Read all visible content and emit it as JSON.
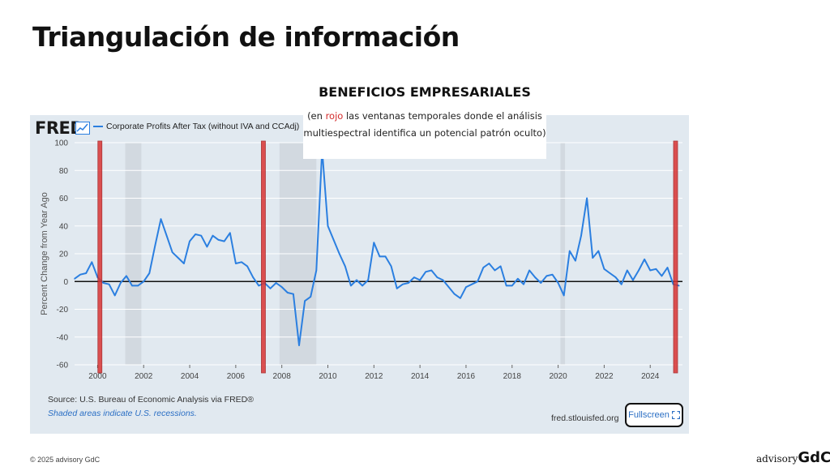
{
  "slide": {
    "title": "Triangulación de información",
    "copyright": "© 2025 advisory GdC",
    "brand_small": "advisory",
    "brand_big": "GdC"
  },
  "annotation": {
    "title": "BENEFICIOS EMPRESARIALES",
    "prefix": "(en ",
    "red_word": "rojo",
    "rest": " las ventanas temporales donde el análisis multiespectral identifica un potencial patrón oculto)"
  },
  "fred": {
    "logo": "FRED",
    "series_label": "Corporate Profits After Tax (without IVA and CCAdj)",
    "source": "Source: U.S. Bureau of Economic Analysis via FRED®",
    "shaded_note": "Shaded areas indicate U.S. recessions.",
    "url": "fred.stlouisfed.org",
    "fullscreen_label": "Fullscreen"
  },
  "colors": {
    "series": "#2b7fe0",
    "highlight": "#d93434",
    "recession": "#d2d9e0",
    "panel": "#e1e9f0"
  },
  "chart_data": {
    "type": "line",
    "title": "Corporate Profits After Tax (without IVA and CCAdj)",
    "xlabel": "",
    "ylabel": "Percent Change from Year Ago",
    "xlim": [
      1999.0,
      2025.4
    ],
    "ylim": [
      -60,
      100
    ],
    "yticks": [
      100,
      80,
      60,
      40,
      20,
      0,
      -20,
      -40,
      -60
    ],
    "xticks": [
      2000,
      2002,
      2004,
      2006,
      2008,
      2010,
      2012,
      2014,
      2016,
      2018,
      2020,
      2022,
      2024
    ],
    "recessions": [
      [
        2001.2,
        2001.9
      ],
      [
        2007.9,
        2009.5
      ],
      [
        2020.1,
        2020.3
      ]
    ],
    "highlight_windows": [
      2000.1,
      2007.2,
      2025.1
    ],
    "series": [
      {
        "name": "Corporate Profits After Tax (without IVA and CCAdj)",
        "x": [
          1999.0,
          1999.25,
          1999.5,
          1999.75,
          2000.0,
          2000.25,
          2000.5,
          2000.75,
          2001.0,
          2001.25,
          2001.5,
          2001.75,
          2002.0,
          2002.25,
          2002.5,
          2002.75,
          2003.0,
          2003.25,
          2003.5,
          2003.75,
          2004.0,
          2004.25,
          2004.5,
          2004.75,
          2005.0,
          2005.25,
          2005.5,
          2005.75,
          2006.0,
          2006.25,
          2006.5,
          2006.75,
          2007.0,
          2007.25,
          2007.5,
          2007.75,
          2008.0,
          2008.25,
          2008.5,
          2008.75,
          2009.0,
          2009.25,
          2009.5,
          2009.75,
          2010.0,
          2010.25,
          2010.5,
          2010.75,
          2011.0,
          2011.25,
          2011.5,
          2011.75,
          2012.0,
          2012.25,
          2012.5,
          2012.75,
          2013.0,
          2013.25,
          2013.5,
          2013.75,
          2014.0,
          2014.25,
          2014.5,
          2014.75,
          2015.0,
          2015.25,
          2015.5,
          2015.75,
          2016.0,
          2016.25,
          2016.5,
          2016.75,
          2017.0,
          2017.25,
          2017.5,
          2017.75,
          2018.0,
          2018.25,
          2018.5,
          2018.75,
          2019.0,
          2019.25,
          2019.5,
          2019.75,
          2020.0,
          2020.25,
          2020.5,
          2020.75,
          2021.0,
          2021.25,
          2021.5,
          2021.75,
          2022.0,
          2022.25,
          2022.5,
          2022.75,
          2023.0,
          2023.25,
          2023.5,
          2023.75,
          2024.0,
          2024.25,
          2024.5,
          2024.75,
          2025.0,
          2025.25
        ],
        "values": [
          2,
          5,
          6,
          14,
          3,
          -1,
          -2,
          -10,
          -1,
          4,
          -3,
          -3,
          0,
          6,
          26,
          45,
          33,
          21,
          17,
          13,
          29,
          34,
          33,
          25,
          33,
          30,
          29,
          35,
          13,
          14,
          11,
          3,
          -3,
          -1,
          -5,
          -1,
          -4,
          -8,
          -9,
          -46,
          -14,
          -11,
          8,
          95,
          40,
          30,
          20,
          11,
          -3,
          1,
          -3,
          1,
          28,
          18,
          18,
          11,
          -5,
          -2,
          -1,
          3,
          1,
          7,
          8,
          3,
          1,
          -4,
          -9,
          -12,
          -4,
          -2,
          0,
          10,
          13,
          8,
          11,
          -3,
          -3,
          2,
          -2,
          8,
          3,
          -1,
          4,
          5,
          -1,
          -10,
          22,
          15,
          33,
          60,
          17,
          22,
          9,
          6,
          3,
          -2,
          8,
          1,
          8,
          16,
          8,
          9,
          4,
          10,
          -2,
          -3
        ]
      }
    ]
  }
}
